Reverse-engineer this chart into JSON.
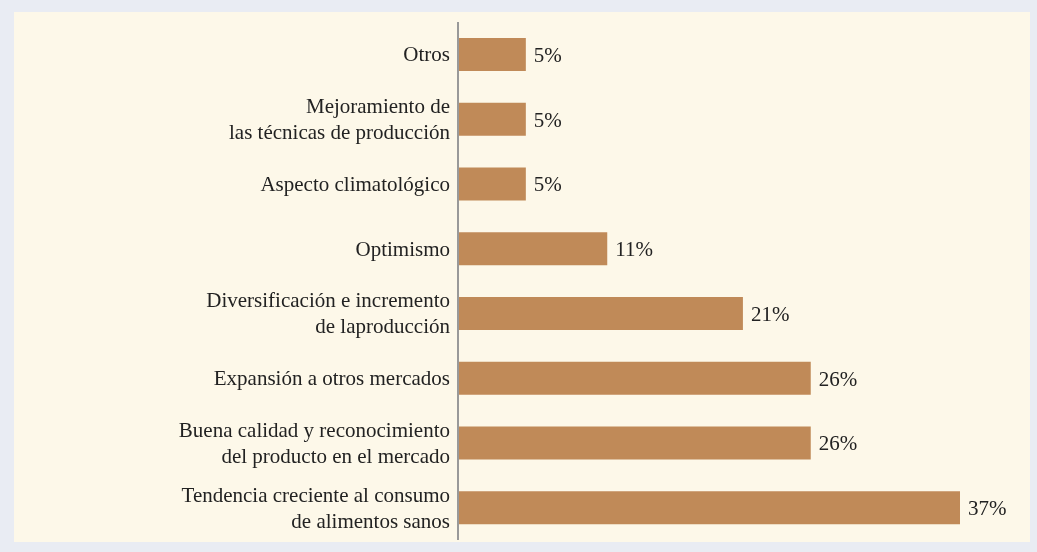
{
  "chart_data": {
    "type": "bar",
    "orientation": "horizontal",
    "categories": [
      "Otros",
      "Mejoramiento de\nlas técnicas de producción",
      "Aspecto climatológico",
      "Optimismo",
      "Diversificación e incremento\nde laproducción",
      "Expansión a otros mercados",
      "Buena calidad y reconocimiento\ndel producto en el mercado",
      "Tendencia creciente al consumo\nde alimentos sanos"
    ],
    "values": [
      5,
      5,
      5,
      11,
      21,
      26,
      26,
      37
    ],
    "value_labels": [
      "5%",
      "5%",
      "5%",
      "11%",
      "21%",
      "26%",
      "26%",
      "37%"
    ],
    "color": "#c08a58"
  }
}
